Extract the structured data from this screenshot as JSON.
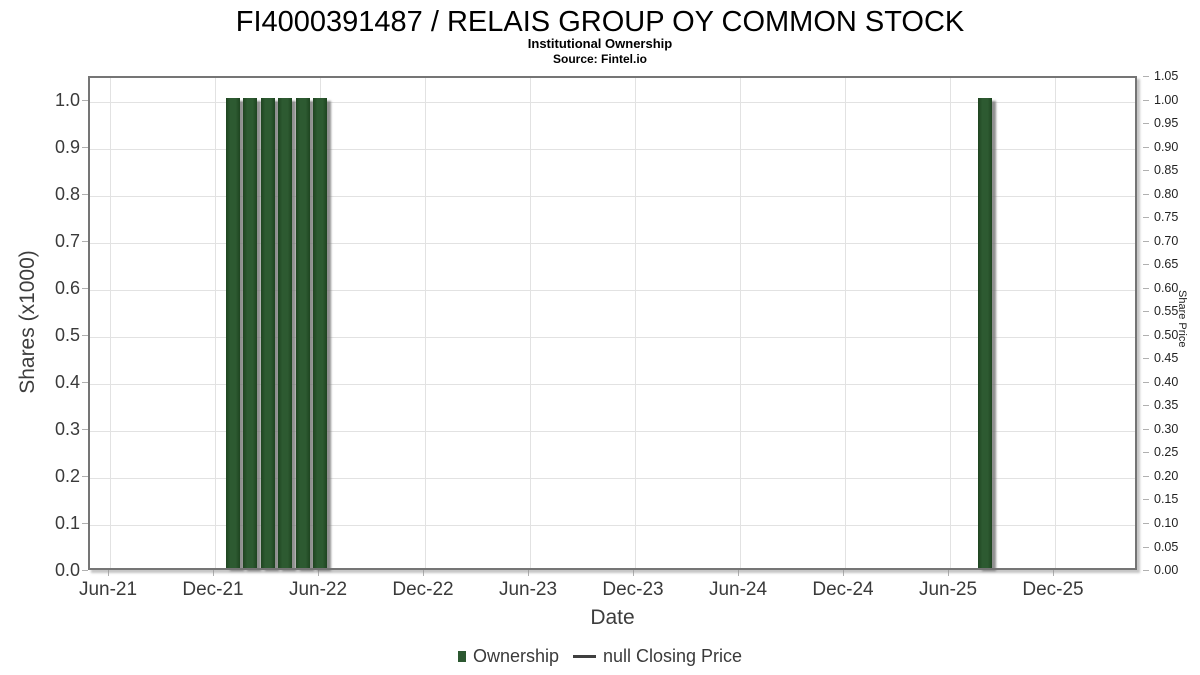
{
  "header": {
    "title": "FI4000391487 / RELAIS GROUP OY COMMON STOCK",
    "subtitle": "Institutional Ownership",
    "source": "Source: Fintel.io"
  },
  "axes": {
    "x_title": "Date",
    "y_left_title": "Shares (x1000)",
    "y_right_title": "Share Price"
  },
  "legend": {
    "items": [
      {
        "label": "Ownership",
        "marker": "square",
        "color": "#2c5831"
      },
      {
        "label": "null Closing Price",
        "marker": "line",
        "color": "#3f3f3f"
      }
    ]
  },
  "chart_data": {
    "type": "bar",
    "title": "FI4000391487 / RELAIS GROUP OY COMMON STOCK",
    "subtitle": "Institutional Ownership",
    "source": "Source: Fintel.io",
    "xlabel": "Date",
    "ylabel_left": "Shares (x1000)",
    "ylabel_right": "Share Price",
    "grid": true,
    "legend_position": "bottom",
    "x_tick_labels": [
      "Jun-21",
      "Dec-21",
      "Jun-22",
      "Dec-22",
      "Jun-23",
      "Dec-23",
      "Jun-24",
      "Dec-24",
      "Jun-25",
      "Dec-25"
    ],
    "x_tick_month_offsets": [
      0,
      6,
      12,
      18,
      24,
      30,
      36,
      42,
      48,
      54
    ],
    "y_left_tick_labels": [
      "0.0",
      "0.1",
      "0.2",
      "0.3",
      "0.4",
      "0.5",
      "0.6",
      "0.7",
      "0.8",
      "0.9",
      "1.0"
    ],
    "y_right_tick_labels": [
      "0.00",
      "0.05",
      "0.10",
      "0.15",
      "0.20",
      "0.25",
      "0.30",
      "0.35",
      "0.40",
      "0.45",
      "0.50",
      "0.55",
      "0.60",
      "0.65",
      "0.70",
      "0.75",
      "0.80",
      "0.85",
      "0.90",
      "0.95",
      "1.00",
      "1.05"
    ],
    "y_left_range": [
      0,
      1.051
    ],
    "y_right_range": [
      0,
      1.05
    ],
    "bar_color": "#2c5831",
    "series": [
      {
        "name": "Ownership",
        "type": "bar",
        "color": "#2c5831",
        "points": [
          {
            "date": "Jan-22",
            "month_offset": 7,
            "shares_x1000": 1.0
          },
          {
            "date": "Feb-22",
            "month_offset": 8,
            "shares_x1000": 1.0
          },
          {
            "date": "Mar-22",
            "month_offset": 9,
            "shares_x1000": 1.0
          },
          {
            "date": "Apr-22",
            "month_offset": 10,
            "shares_x1000": 1.0
          },
          {
            "date": "May-22",
            "month_offset": 11,
            "shares_x1000": 1.0
          },
          {
            "date": "Jun-22",
            "month_offset": 12,
            "shares_x1000": 1.0
          },
          {
            "date": "Aug-25",
            "month_offset": 50,
            "shares_x1000": 1.0
          }
        ]
      },
      {
        "name": "null Closing Price",
        "type": "line",
        "color": "#3f3f3f",
        "points": []
      }
    ]
  }
}
